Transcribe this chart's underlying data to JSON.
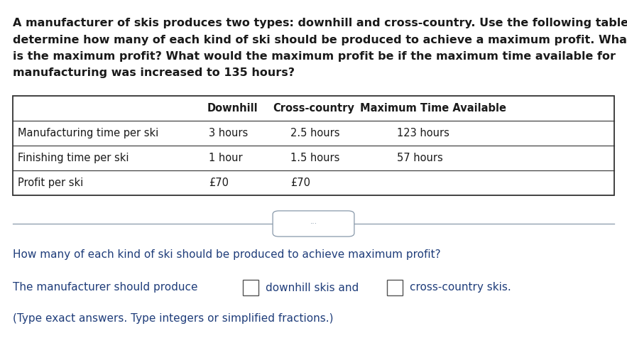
{
  "intro_text_lines": [
    "A manufacturer of skis produces two types: downhill and cross-country. Use the following table to",
    "determine how many of each kind of ski should be produced to achieve a maximum profit. What",
    "is the maximum profit? What would the maximum profit be if the maximum time available for",
    "manufacturing was increased to 135 hours?"
  ],
  "table_headers": [
    "",
    "Downhill",
    "Cross-country",
    "Maximum Time Available"
  ],
  "table_rows": [
    [
      "Manufacturing time per ski",
      "3 hours",
      "2.5 hours",
      "123 hours"
    ],
    [
      "Finishing time per ski",
      "1 hour",
      "1.5 hours",
      "57 hours"
    ],
    [
      "Profit per ski",
      "£70",
      "£70",
      ""
    ]
  ],
  "question_text": "How many of each kind of ski should be produced to achieve maximum profit?",
  "answer_text_1": "The manufacturer should produce",
  "answer_text_2": "downhill skis and",
  "answer_text_3": "cross-country skis.",
  "note_text": "(Type exact answers. Type integers or simplified fractions.)",
  "text_color_black": "#1a1a1a",
  "text_color_blue": "#1f3d7a",
  "bg_color": "#ffffff",
  "divider_color": "#8899aa",
  "table_border_color": "#333333",
  "intro_fontsize": 11.5,
  "table_fontsize": 10.5,
  "question_fontsize": 11.0,
  "answer_fontsize": 11.0
}
